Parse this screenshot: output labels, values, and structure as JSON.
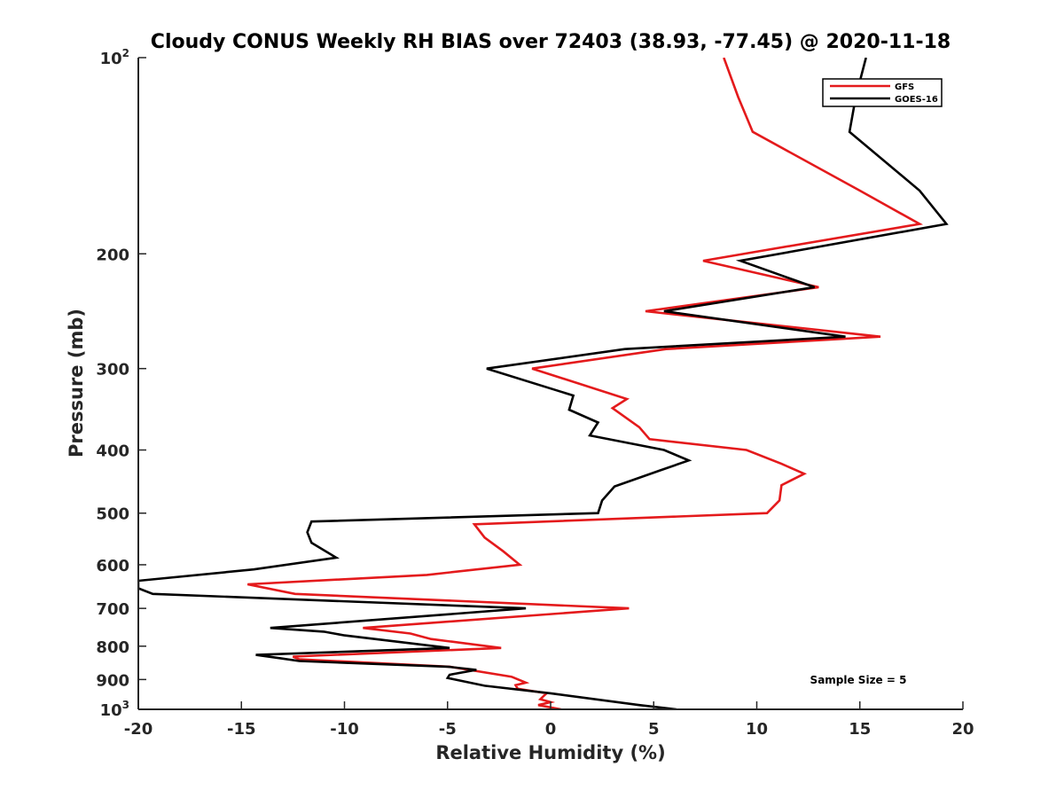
{
  "chart_data": {
    "type": "line",
    "title": "Cloudy CONUS Weekly RH BIAS over 72403 (38.93, -77.45) @ 2020-11-18",
    "xlabel": "Relative Humidity (%)",
    "ylabel": "Pressure (mb)",
    "xlim": [
      -20,
      20
    ],
    "ylim": [
      100,
      1000
    ],
    "y_scale": "log",
    "y_reversed": true,
    "x_ticks": [
      "-20",
      "-15",
      "-10",
      "-5",
      "0",
      "5",
      "10",
      "15",
      "20"
    ],
    "y_ticks": [
      {
        "value": 100,
        "base": "10",
        "exp": "2"
      },
      {
        "value": 200,
        "label": "200"
      },
      {
        "value": 300,
        "label": "300"
      },
      {
        "value": 400,
        "label": "400"
      },
      {
        "value": 500,
        "label": "500"
      },
      {
        "value": 600,
        "label": "600"
      },
      {
        "value": 700,
        "label": "700"
      },
      {
        "value": 800,
        "label": "800"
      },
      {
        "value": 900,
        "label": "900"
      },
      {
        "value": 1000,
        "base": "10",
        "exp": "3"
      }
    ],
    "legend": {
      "position": "top-right",
      "entries": [
        "GFS",
        "GOES-16"
      ]
    },
    "annotation": "Sample Size = 5",
    "series": [
      {
        "name": "GFS",
        "color": "#e41a1c",
        "points": [
          [
            8.4,
            100
          ],
          [
            9.1,
            115
          ],
          [
            9.8,
            130
          ],
          [
            15,
            160
          ],
          [
            17.9,
            180
          ],
          [
            7.4,
            205
          ],
          [
            13,
            225
          ],
          [
            4.6,
            245
          ],
          [
            16,
            268
          ],
          [
            5.6,
            280
          ],
          [
            -0.9,
            300
          ],
          [
            3.7,
            334
          ],
          [
            3,
            345
          ],
          [
            4.3,
            369
          ],
          [
            4.8,
            385
          ],
          [
            9.5,
            400
          ],
          [
            11.2,
            420
          ],
          [
            12.3,
            435
          ],
          [
            11.2,
            453
          ],
          [
            11.1,
            478
          ],
          [
            10.5,
            500
          ],
          [
            -3.7,
            520
          ],
          [
            -3.2,
            545
          ],
          [
            -2.3,
            572
          ],
          [
            -1.5,
            600
          ],
          [
            -6,
            622
          ],
          [
            -14.7,
            643
          ],
          [
            -12.4,
            665
          ],
          [
            3.8,
            700
          ],
          [
            -9.1,
            750
          ],
          [
            -6.8,
            765
          ],
          [
            -5.8,
            780
          ],
          [
            -2.4,
            805
          ],
          [
            -12.5,
            830
          ],
          [
            -12.2,
            838
          ],
          [
            -4.9,
            860
          ],
          [
            -1.9,
            891
          ],
          [
            -1.2,
            910
          ],
          [
            -1.7,
            918
          ],
          [
            -1.6,
            930
          ],
          [
            -0.2,
            945
          ],
          [
            -0.5,
            965
          ],
          [
            0,
            975
          ],
          [
            -0.6,
            985
          ],
          [
            0.5,
            1000
          ]
        ]
      },
      {
        "name": "GOES-16",
        "color": "#000000",
        "points": [
          [
            15.3,
            100
          ],
          [
            14.8,
            115
          ],
          [
            14.5,
            130
          ],
          [
            17.9,
            160
          ],
          [
            19.2,
            180
          ],
          [
            9.2,
            205
          ],
          [
            12.8,
            225
          ],
          [
            5.5,
            245
          ],
          [
            14.3,
            268
          ],
          [
            3.6,
            280
          ],
          [
            -3.1,
            300
          ],
          [
            1.1,
            330
          ],
          [
            0.9,
            347
          ],
          [
            2.3,
            363
          ],
          [
            1.9,
            380
          ],
          [
            5.5,
            400
          ],
          [
            6.7,
            415
          ],
          [
            5.3,
            430
          ],
          [
            3.1,
            455
          ],
          [
            2.5,
            478
          ],
          [
            2.3,
            500
          ],
          [
            -11.6,
            515
          ],
          [
            -11.8,
            535
          ],
          [
            -11.6,
            555
          ],
          [
            -10.4,
            585
          ],
          [
            -14.4,
            610
          ],
          [
            -20,
            635
          ],
          [
            -20,
            652
          ],
          [
            -19.3,
            665
          ],
          [
            -1.2,
            700
          ],
          [
            -13.6,
            750
          ],
          [
            -11,
            760
          ],
          [
            -10,
            770
          ],
          [
            -4.9,
            805
          ],
          [
            -14.3,
            825
          ],
          [
            -13.1,
            835
          ],
          [
            -12.2,
            843
          ],
          [
            -5,
            860
          ],
          [
            -3.6,
            870
          ],
          [
            -4.9,
            885
          ],
          [
            -5,
            895
          ],
          [
            -3.2,
            920
          ],
          [
            0,
            945
          ],
          [
            4.3,
            985
          ],
          [
            6.1,
            1000
          ]
        ]
      }
    ]
  }
}
